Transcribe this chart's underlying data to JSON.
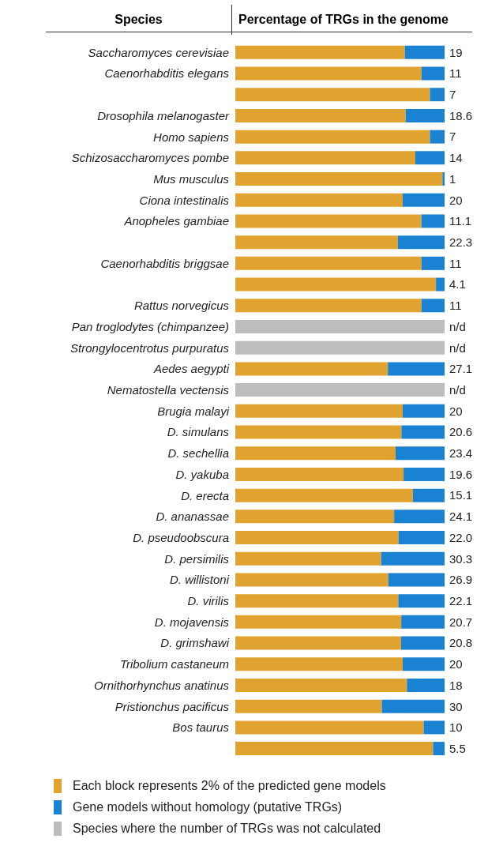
{
  "chart_data": {
    "type": "bar",
    "orientation": "horizontal",
    "stacked": true,
    "title": "Percentage of TRGs in the genome",
    "ylabel": "Species",
    "categories": [
      "Saccharomyces cerevisiae",
      "Caenorhabditis elegans",
      null,
      "Drosophila melanogaster",
      "Homo sapiens",
      "Schizosaccharomyces pombe",
      "Mus musculus",
      "Ciona intestinalis",
      "Anopheles gambiae",
      null,
      "Caenorhabditis briggsae",
      null,
      "Rattus norvegicus",
      "Pan troglodytes (chimpanzee)",
      "Strongylocentrotus purpuratus",
      "Aedes aegypti",
      "Nematostella vectensis",
      "Brugia malayi",
      "D.  simulans",
      "D.  sechellia",
      "D.  yakuba",
      "D.  erecta",
      "D.  ananassae",
      "D.  pseudoobscura",
      "D.  persimilis",
      "D.  willistoni",
      "D.  virilis",
      "D.  mojavensis",
      "D. grimshawi",
      "Tribolium castaneum",
      "Ornithorhynchus anatinus",
      "Pristionchus pacificus",
      "Bos taurus",
      null
    ],
    "series": [
      {
        "name": "Each block represents 2% of the predicted gene models",
        "color": "#e0a330",
        "values": [
          81,
          89,
          93,
          81.4,
          93,
          86,
          99,
          80,
          88.9,
          77.7,
          89,
          95.9,
          89,
          null,
          null,
          72.9,
          null,
          80,
          79.4,
          76.6,
          80.4,
          84.9,
          75.9,
          78.0,
          69.7,
          73.1,
          77.9,
          79.3,
          79.2,
          80,
          82,
          70,
          90,
          94.5
        ]
      },
      {
        "name": "Gene models without homology (putative TRGs)",
        "color": "#1a82d2",
        "values": [
          19,
          11,
          7,
          18.6,
          7,
          14,
          1,
          20,
          11.1,
          22.3,
          11,
          4.1,
          11,
          null,
          null,
          27.1,
          null,
          20,
          20.6,
          23.4,
          19.6,
          15.1,
          24.1,
          22.0,
          30.3,
          26.9,
          22.1,
          20.7,
          20.8,
          20,
          18,
          30,
          10,
          5.5
        ],
        "value_labels": [
          "19",
          "11",
          "7",
          "18.6",
          "7",
          "14",
          "1",
          "20",
          "11.1",
          "22.3",
          "11",
          "4.1",
          "11",
          null,
          null,
          "27.1",
          null,
          "20",
          "20.6",
          "23.4",
          "19.6",
          "15.1",
          "24.1",
          "22.0",
          "30.3",
          "26.9",
          "22.1",
          "20.7",
          "20.8",
          "20",
          "18",
          "30",
          "10",
          "5.5"
        ]
      },
      {
        "name": "Species where the number of TRGs was not calculated",
        "color": "#bdbdbd",
        "values": [
          null,
          null,
          null,
          null,
          null,
          null,
          null,
          null,
          null,
          null,
          null,
          null,
          null,
          100,
          100,
          null,
          100,
          null,
          null,
          null,
          null,
          null,
          null,
          null,
          null,
          null,
          null,
          null,
          null,
          null,
          null,
          null,
          null,
          null
        ],
        "value_labels": [
          null,
          null,
          null,
          null,
          null,
          null,
          null,
          null,
          null,
          null,
          null,
          null,
          null,
          "n/d",
          "n/d",
          null,
          "n/d",
          null,
          null,
          null,
          null,
          null,
          null,
          null,
          null,
          null,
          null,
          null,
          null,
          null,
          null,
          null,
          null,
          null
        ]
      }
    ],
    "xlim": [
      0,
      100
    ],
    "tick_labels": "y",
    "legend": "bottom"
  }
}
